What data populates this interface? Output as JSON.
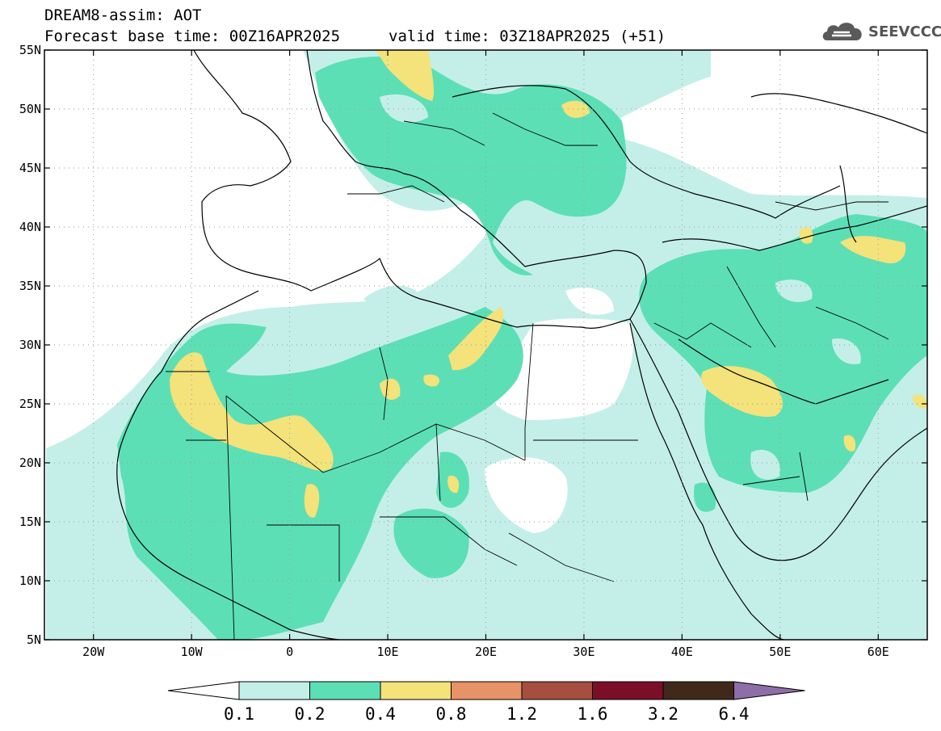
{
  "title": {
    "line1": "DREAM8-assim: AOT",
    "line2_left": "Forecast base time: 00Z16APR2025",
    "line2_right": "valid time: 03Z18APR2025 (+51)"
  },
  "logo": {
    "text": "SEEVCCC",
    "icon": "cloud-icon"
  },
  "map": {
    "projection": "lat-lon",
    "lon_range": [
      -25,
      65
    ],
    "lat_range": [
      5,
      55
    ],
    "lon_ticks": [
      {
        "v": -20,
        "label": "20W"
      },
      {
        "v": -10,
        "label": "10W"
      },
      {
        "v": 0,
        "label": "0"
      },
      {
        "v": 10,
        "label": "10E"
      },
      {
        "v": 20,
        "label": "20E"
      },
      {
        "v": 30,
        "label": "30E"
      },
      {
        "v": 40,
        "label": "40E"
      },
      {
        "v": 50,
        "label": "50E"
      },
      {
        "v": 60,
        "label": "60E"
      }
    ],
    "lat_ticks": [
      {
        "v": 55,
        "label": "55N"
      },
      {
        "v": 50,
        "label": "50N"
      },
      {
        "v": 45,
        "label": "45N"
      },
      {
        "v": 40,
        "label": "40N"
      },
      {
        "v": 35,
        "label": "35N"
      },
      {
        "v": 30,
        "label": "30N"
      },
      {
        "v": 25,
        "label": "25N"
      },
      {
        "v": 20,
        "label": "20N"
      },
      {
        "v": 15,
        "label": "15N"
      },
      {
        "v": 10,
        "label": "10N"
      },
      {
        "v": 5,
        "label": "5N"
      }
    ],
    "grid": "dotted"
  },
  "legend": {
    "levels": [
      "0.1",
      "0.2",
      "0.4",
      "0.8",
      "1.2",
      "1.6",
      "3.2",
      "6.4"
    ],
    "colors": [
      "#ffffff",
      "#c4efe8",
      "#5ddfb6",
      "#f4e27a",
      "#e79267",
      "#a64e3f",
      "#7b0f2a",
      "#40281a",
      "#8e6ea8"
    ]
  }
}
